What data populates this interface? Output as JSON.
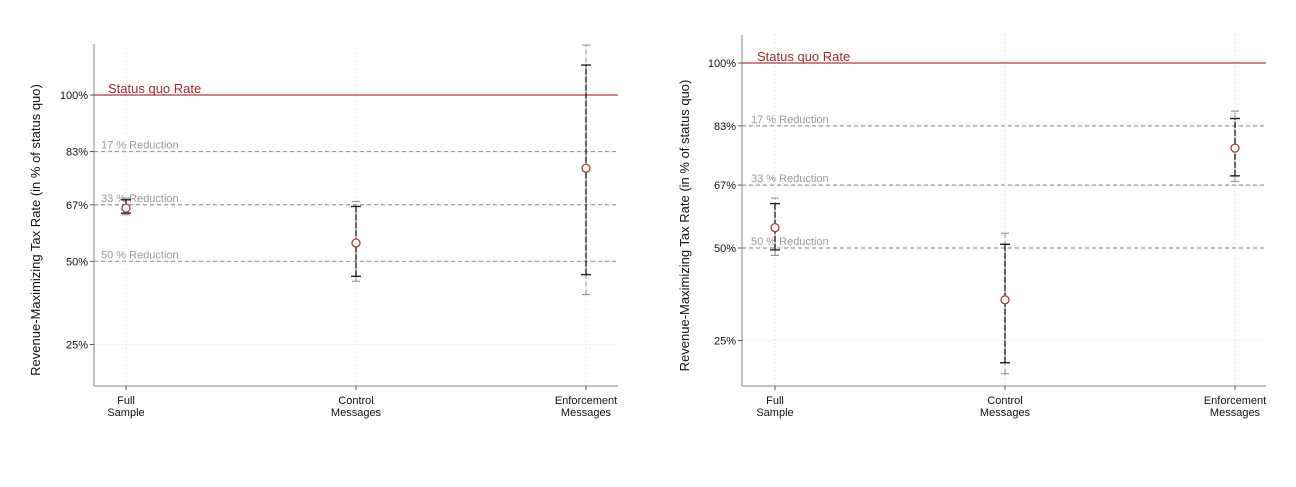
{
  "chart_data": [
    {
      "type": "scatter",
      "ylabel": "Revenue-Maximizing Tax Rate (in % of status quo)",
      "categories": [
        "Full\nSample",
        "Control\nMessages",
        "Enforcement\nMessages"
      ],
      "yticks": [
        {
          "value": 25,
          "label": "25%"
        },
        {
          "value": 50,
          "label": "50%"
        },
        {
          "value": 67,
          "label": "67%"
        },
        {
          "value": 83,
          "label": "83%"
        },
        {
          "value": 100,
          "label": "100%"
        }
      ],
      "ylim": [
        18,
        115
      ],
      "status_quo": {
        "value": 100,
        "label": "Status quo Rate"
      },
      "reference_lines": [
        {
          "value": 83,
          "label": "17 % Reduction"
        },
        {
          "value": 67,
          "label": "33 % Reduction"
        },
        {
          "value": 50,
          "label": "50 % Reduction"
        }
      ],
      "points": [
        {
          "category": "Full\nSample",
          "estimate": 66,
          "ci95": [
            64,
            69
          ],
          "ci90": [
            64.5,
            68.5
          ]
        },
        {
          "category": "Control\nMessages",
          "estimate": 55.5,
          "ci95": [
            44,
            68
          ],
          "ci90": [
            45.5,
            66.5
          ]
        },
        {
          "category": "Enforcement\nMessages",
          "estimate": 78,
          "ci95": [
            40,
            115
          ],
          "ci90": [
            46,
            109
          ]
        }
      ],
      "colors": {
        "status_quo": "#b03a3a",
        "estimate": "#b03a3a",
        "ci": "#222222",
        "reference": "#999999"
      }
    },
    {
      "type": "scatter",
      "ylabel": "Revenue-Maximizing Tax Rate (in % of status quo)",
      "categories": [
        "Full\nSample",
        "Control\nMessages",
        "Enforcement\nMessages"
      ],
      "yticks": [
        {
          "value": 25,
          "label": "25%"
        },
        {
          "value": 50,
          "label": "50%"
        },
        {
          "value": 67,
          "label": "67%"
        },
        {
          "value": 83,
          "label": "83%"
        },
        {
          "value": 100,
          "label": "100%"
        }
      ],
      "ylim": [
        13,
        107
      ],
      "status_quo": {
        "value": 100,
        "label": "Status quo Rate"
      },
      "reference_lines": [
        {
          "value": 83,
          "label": "17 % Reduction"
        },
        {
          "value": 67,
          "label": "33 % Reduction"
        },
        {
          "value": 50,
          "label": "50 % Reduction"
        }
      ],
      "points": [
        {
          "category": "Full\nSample",
          "estimate": 55.5,
          "ci95": [
            48,
            63.5
          ],
          "ci90": [
            49.5,
            62
          ]
        },
        {
          "category": "Control\nMessages",
          "estimate": 36,
          "ci95": [
            16,
            54
          ],
          "ci90": [
            19,
            51
          ]
        },
        {
          "category": "Enforcement\nMessages",
          "estimate": 77,
          "ci95": [
            68,
            87
          ],
          "ci90": [
            69.5,
            85
          ]
        }
      ],
      "colors": {
        "status_quo": "#b03a3a",
        "estimate": "#b03a3a",
        "ci": "#222222",
        "reference": "#999999"
      }
    }
  ]
}
